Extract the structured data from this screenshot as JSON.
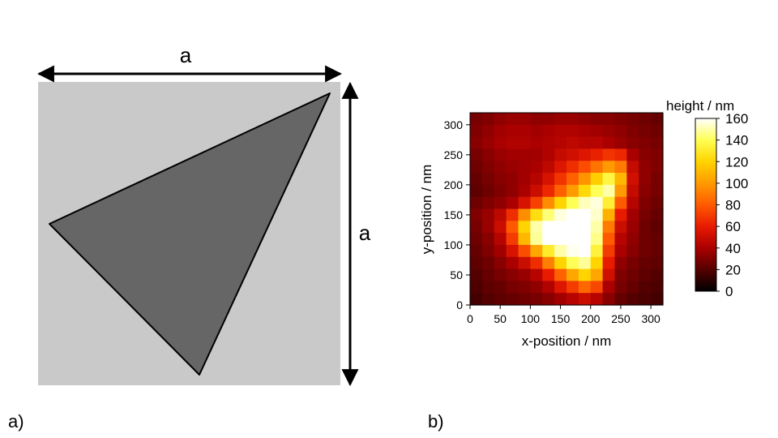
{
  "panel_a": {
    "label": "a)",
    "width_label": "a",
    "height_label": "a",
    "colors": {
      "square": "#c9c9c9",
      "triangle": "#666666",
      "outline": "#000000"
    }
  },
  "panel_b": {
    "label": "b)"
  },
  "chart_data": {
    "type": "heatmap",
    "xlabel": "x-position / nm",
    "ylabel": "y-position / nm",
    "xlim": [
      0,
      320
    ],
    "ylim": [
      0,
      320
    ],
    "xticks": [
      0,
      50,
      100,
      150,
      200,
      250,
      300
    ],
    "yticks": [
      0,
      50,
      100,
      150,
      200,
      250,
      300
    ],
    "grid": false,
    "colorbar": {
      "title": "height / nm",
      "min": 0,
      "max": 160,
      "ticks": [
        0,
        20,
        40,
        60,
        80,
        100,
        120,
        140,
        160
      ],
      "colormap": [
        "#000000",
        "#550000",
        "#aa0000",
        "#e81b00",
        "#ff5a00",
        "#ff9a00",
        "#ffd400",
        "#ffff55",
        "#ffffff"
      ]
    },
    "grid_size": {
      "cols": 16,
      "rows": 16,
      "cell_nm": 20
    },
    "z_rows_top_to_bottom": [
      [
        28,
        30,
        34,
        36,
        36,
        34,
        34,
        36,
        36,
        34,
        32,
        32,
        30,
        28,
        26,
        24
      ],
      [
        30,
        34,
        38,
        40,
        40,
        38,
        40,
        42,
        42,
        40,
        38,
        36,
        34,
        30,
        28,
        26
      ],
      [
        32,
        36,
        40,
        42,
        42,
        40,
        42,
        44,
        46,
        44,
        44,
        40,
        36,
        32,
        30,
        28
      ],
      [
        28,
        32,
        36,
        38,
        38,
        38,
        42,
        48,
        52,
        56,
        62,
        68,
        64,
        40,
        32,
        30
      ],
      [
        26,
        30,
        34,
        36,
        38,
        40,
        46,
        56,
        66,
        76,
        88,
        100,
        90,
        48,
        34,
        30
      ],
      [
        24,
        28,
        32,
        34,
        38,
        44,
        54,
        68,
        82,
        98,
        118,
        136,
        110,
        52,
        34,
        28
      ],
      [
        22,
        26,
        30,
        34,
        40,
        50,
        64,
        82,
        100,
        122,
        140,
        150,
        100,
        48,
        32,
        28
      ],
      [
        26,
        30,
        34,
        40,
        54,
        72,
        96,
        120,
        140,
        152,
        156,
        132,
        80,
        44,
        30,
        26
      ],
      [
        30,
        36,
        46,
        66,
        96,
        124,
        144,
        156,
        160,
        160,
        154,
        108,
        60,
        38,
        28,
        24
      ],
      [
        28,
        36,
        50,
        80,
        120,
        150,
        160,
        160,
        160,
        160,
        150,
        90,
        50,
        36,
        26,
        22
      ],
      [
        26,
        32,
        44,
        70,
        110,
        148,
        160,
        160,
        160,
        160,
        146,
        80,
        44,
        34,
        26,
        24
      ],
      [
        24,
        30,
        38,
        54,
        76,
        104,
        130,
        150,
        158,
        160,
        134,
        70,
        40,
        32,
        26,
        24
      ],
      [
        22,
        26,
        32,
        40,
        50,
        66,
        92,
        120,
        140,
        148,
        120,
        60,
        34,
        28,
        24,
        22
      ],
      [
        20,
        24,
        28,
        32,
        36,
        44,
        60,
        82,
        104,
        120,
        104,
        52,
        30,
        26,
        22,
        20
      ],
      [
        18,
        22,
        24,
        28,
        30,
        34,
        42,
        56,
        70,
        84,
        74,
        40,
        28,
        24,
        20,
        18
      ],
      [
        16,
        20,
        22,
        24,
        26,
        28,
        32,
        38,
        44,
        50,
        44,
        32,
        24,
        20,
        18,
        16
      ]
    ]
  }
}
